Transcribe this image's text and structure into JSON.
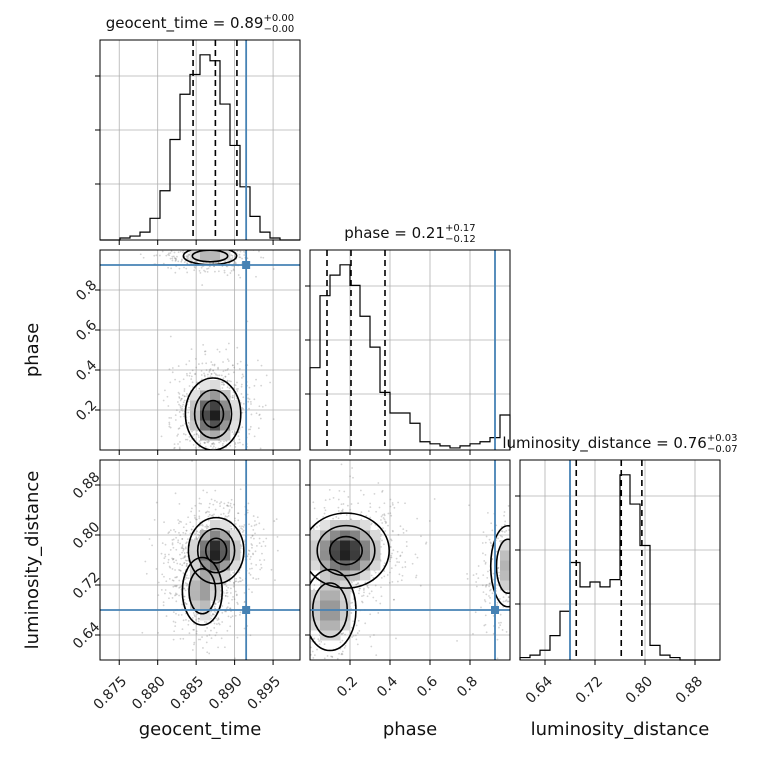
{
  "chart_data": {
    "type": "corner",
    "parameters": [
      {
        "name": "geocent_time",
        "label": "geocent_time",
        "range": [
          0.8725,
          0.8985
        ],
        "ticks": [
          0.875,
          0.88,
          0.885,
          0.89,
          0.895
        ],
        "tick_labels": [
          "0.875",
          "0.880",
          "0.885",
          "0.890",
          "0.895"
        ],
        "truth": 0.8915,
        "quantiles": [
          0.8846,
          0.8875,
          0.8903
        ],
        "title": {
          "prefix": "geocent_time = 0.89",
          "plus": "+0.00",
          "minus": "−0.00"
        }
      },
      {
        "name": "phase",
        "label": "phase",
        "range": [
          0.0,
          1.0
        ],
        "ticks": [
          0.2,
          0.4,
          0.6,
          0.8
        ],
        "tick_labels": [
          "0.2",
          "0.4",
          "0.6",
          "0.8"
        ],
        "truth": 0.925,
        "quantiles": [
          0.085,
          0.205,
          0.375
        ],
        "title": {
          "prefix": "phase = 0.21",
          "plus": "+0.17",
          "minus": "−0.12"
        }
      },
      {
        "name": "luminosity_distance",
        "label": "luminosity_distance",
        "range": [
          0.6,
          0.92
        ],
        "ticks": [
          0.64,
          0.72,
          0.8,
          0.88
        ],
        "tick_labels": [
          "0.64",
          "0.72",
          "0.80",
          "0.88"
        ],
        "truth": 0.68,
        "quantiles": [
          0.69,
          0.762,
          0.795
        ],
        "title": {
          "prefix": "luminosity_distance = 0.76",
          "plus": "+0.03",
          "minus": "−0.07"
        }
      }
    ],
    "histograms": [
      {
        "param": "geocent_time",
        "bin_edges": [
          0.8725,
          0.8738,
          0.8751,
          0.8764,
          0.8777,
          0.879,
          0.8803,
          0.8816,
          0.8829,
          0.8842,
          0.8855,
          0.8868,
          0.8881,
          0.8894,
          0.8907,
          0.892,
          0.8933,
          0.8946,
          0.8959,
          0.8972,
          0.8985
        ],
        "counts": [
          0,
          0,
          1,
          2,
          4,
          11,
          25,
          51,
          74,
          84,
          94,
          91,
          69,
          48,
          27,
          12,
          4,
          1,
          0,
          0
        ]
      },
      {
        "param": "phase",
        "bin_edges": [
          0.0,
          0.05,
          0.1,
          0.15,
          0.2,
          0.25,
          0.3,
          0.35,
          0.4,
          0.45,
          0.5,
          0.55,
          0.6,
          0.65,
          0.7,
          0.75,
          0.8,
          0.85,
          0.9,
          0.95,
          1.0
        ],
        "counts": [
          40,
          75,
          85,
          90,
          80,
          65,
          50,
          28,
          18,
          18,
          13,
          4,
          3,
          2,
          1,
          2,
          3,
          4,
          6,
          17
        ]
      },
      {
        "param": "luminosity_distance",
        "bin_edges": [
          0.6,
          0.616,
          0.632,
          0.648,
          0.664,
          0.68,
          0.696,
          0.712,
          0.728,
          0.744,
          0.76,
          0.776,
          0.792,
          0.808,
          0.824,
          0.84,
          0.856,
          0.872,
          0.888,
          0.904,
          0.92
        ],
        "counts": [
          1,
          2,
          4,
          10,
          20,
          40,
          30,
          32,
          30,
          33,
          76,
          64,
          47,
          6,
          2,
          1,
          0,
          0,
          0,
          0
        ]
      }
    ],
    "pairs": [
      {
        "x": "geocent_time",
        "y": "phase",
        "modes": [
          {
            "cx": 0.8872,
            "cy": 0.18,
            "sx": 0.0015,
            "sy": 0.075,
            "w": 1.0
          },
          {
            "cx": 0.8868,
            "cy": 0.97,
            "sx": 0.0016,
            "sy": 0.02,
            "w": 0.35
          }
        ],
        "samples_hint": "grey scatter over whole panel"
      },
      {
        "x": "geocent_time",
        "y": "luminosity_distance",
        "modes": [
          {
            "cx": 0.8876,
            "cy": 0.775,
            "sx": 0.0015,
            "sy": 0.022,
            "w": 1.0
          },
          {
            "cx": 0.8858,
            "cy": 0.71,
            "sx": 0.0012,
            "sy": 0.025,
            "w": 0.45
          }
        ]
      },
      {
        "x": "phase",
        "y": "luminosity_distance",
        "modes": [
          {
            "cx": 0.18,
            "cy": 0.775,
            "sx": 0.09,
            "sy": 0.025,
            "w": 1.0
          },
          {
            "cx": 0.1,
            "cy": 0.68,
            "sx": 0.06,
            "sy": 0.03,
            "w": 0.5
          },
          {
            "cx": 0.99,
            "cy": 0.75,
            "sx": 0.04,
            "sy": 0.03,
            "w": 0.35
          }
        ]
      }
    ],
    "truth_color": "#4682b4",
    "line_color": "#000000",
    "grid": true
  }
}
